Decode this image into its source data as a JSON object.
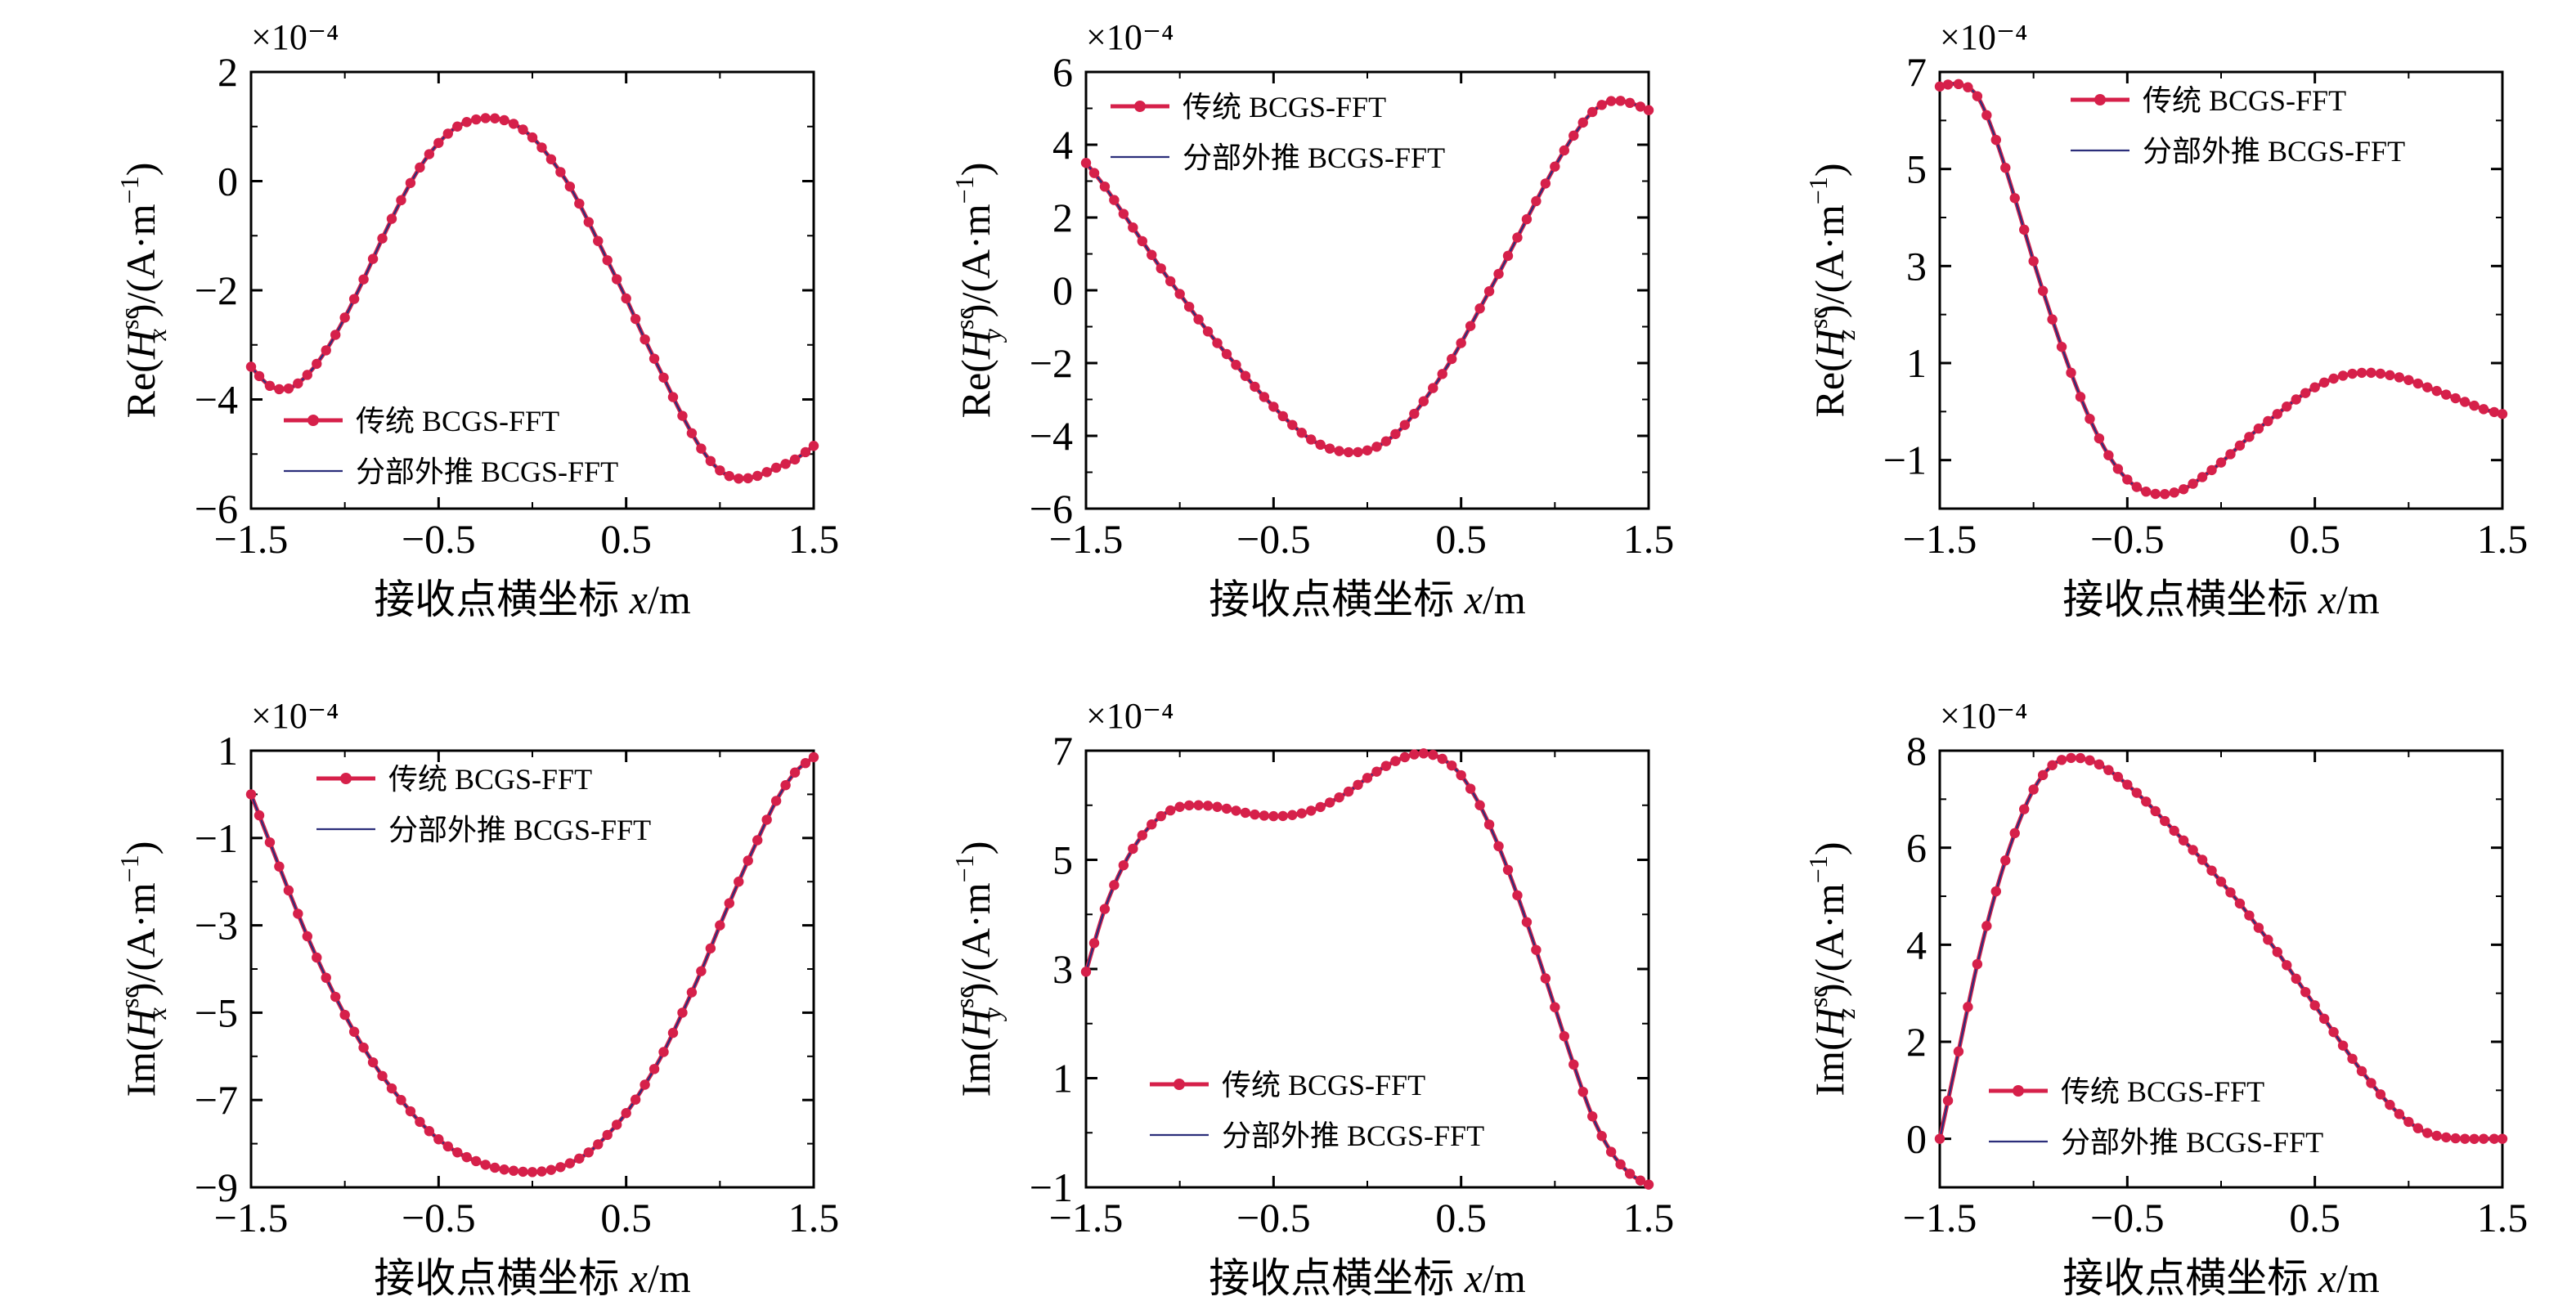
{
  "figure": {
    "x_axis_label": "接收点横坐标 x/m",
    "legend": {
      "series_a": "传统 BCGS-FFT",
      "series_b": "分部外推 BCGS-FFT"
    },
    "exponent_label": "×10⁻⁴",
    "colors": {
      "series_a": "#d6204a",
      "series_b": "#2b2e7a",
      "axis": "#000000"
    }
  },
  "chart_data": [
    {
      "type": "line",
      "ylabel": "Re(Hx^sc)/(A·m⁻¹)",
      "ylabel_parts": {
        "func": "Re",
        "comp": "x"
      },
      "xlabel": "接收点横坐标 x/m",
      "xlim": [
        -1.5,
        1.5
      ],
      "ylim": [
        -6,
        2
      ],
      "xticks": [
        "−1.5",
        "−0.5",
        "0.5",
        "1.5"
      ],
      "yticks": [
        "−6",
        "−4",
        "−2",
        "0",
        "2"
      ],
      "ytick_values": [
        -6,
        -4,
        -2,
        0,
        2
      ],
      "scale": "×10⁻⁴",
      "legend_position": "lower-left",
      "series": [
        {
          "name": "传统 BCGS-FFT",
          "marker": "circle"
        },
        {
          "name": "分部外推 BCGS-FFT",
          "marker": "none"
        }
      ],
      "x": [
        -1.5,
        -1.4,
        -1.3,
        -1.2,
        -1.1,
        -1.0,
        -0.9,
        -0.8,
        -0.7,
        -0.6,
        -0.5,
        -0.4,
        -0.3,
        -0.2,
        -0.1,
        0.0,
        0.1,
        0.2,
        0.3,
        0.4,
        0.5,
        0.6,
        0.7,
        0.8,
        0.9,
        1.0,
        1.1,
        1.2,
        1.3,
        1.4,
        1.5
      ],
      "y": [
        -3.4,
        -3.75,
        -3.8,
        -3.55,
        -3.1,
        -2.5,
        -1.8,
        -1.05,
        -0.35,
        0.25,
        0.7,
        1.0,
        1.13,
        1.15,
        1.05,
        0.8,
        0.4,
        -0.1,
        -0.75,
        -1.45,
        -2.15,
        -2.9,
        -3.6,
        -4.3,
        -4.9,
        -5.3,
        -5.45,
        -5.4,
        -5.25,
        -5.1,
        -4.85
      ]
    },
    {
      "type": "line",
      "ylabel": "Re(Hy^sc)/(A·m⁻¹)",
      "ylabel_parts": {
        "func": "Re",
        "comp": "y"
      },
      "xlabel": "接收点横坐标 x/m",
      "xlim": [
        -1.5,
        1.5
      ],
      "ylim": [
        -6,
        6
      ],
      "xticks": [
        "−1.5",
        "−0.5",
        "0.5",
        "1.5"
      ],
      "yticks": [
        "−6",
        "−4",
        "−2",
        "0",
        "2",
        "4",
        "6"
      ],
      "ytick_values": [
        -6,
        -4,
        -2,
        0,
        2,
        4,
        6
      ],
      "scale": "×10⁻⁴",
      "legend_position": "top-left",
      "series": [
        {
          "name": "传统 BCGS-FFT",
          "marker": "circle"
        },
        {
          "name": "分部外推 BCGS-FFT",
          "marker": "none"
        }
      ],
      "x": [
        -1.5,
        -1.4,
        -1.3,
        -1.2,
        -1.1,
        -1.0,
        -0.9,
        -0.8,
        -0.7,
        -0.6,
        -0.5,
        -0.4,
        -0.3,
        -0.2,
        -0.1,
        0.0,
        0.1,
        0.2,
        0.3,
        0.4,
        0.5,
        0.6,
        0.7,
        0.8,
        0.9,
        1.0,
        1.1,
        1.2,
        1.3,
        1.4,
        1.5
      ],
      "y": [
        3.5,
        2.85,
        2.1,
        1.35,
        0.6,
        -0.1,
        -0.8,
        -1.45,
        -2.05,
        -2.65,
        -3.2,
        -3.7,
        -4.1,
        -4.35,
        -4.45,
        -4.4,
        -4.15,
        -3.7,
        -3.05,
        -2.3,
        -1.45,
        -0.5,
        0.45,
        1.45,
        2.45,
        3.4,
        4.25,
        4.9,
        5.2,
        5.15,
        4.95
      ]
    },
    {
      "type": "line",
      "ylabel": "Re(Hz^sc)/(A·m⁻¹)",
      "ylabel_parts": {
        "func": "Re",
        "comp": "z"
      },
      "xlabel": "接收点横坐标 x/m",
      "xlim": [
        -1.5,
        1.5
      ],
      "ylim": [
        -2,
        7
      ],
      "xticks": [
        "−1.5",
        "−0.5",
        "0.5",
        "1.5"
      ],
      "yticks": [
        "−1",
        "1",
        "3",
        "5",
        "7"
      ],
      "ytick_values": [
        -1,
        1,
        3,
        5,
        7
      ],
      "scale": "×10⁻⁴",
      "legend_position": "top-right",
      "series": [
        {
          "name": "传统 BCGS-FFT",
          "marker": "circle"
        },
        {
          "name": "分部外推 BCGS-FFT",
          "marker": "none"
        }
      ],
      "x": [
        -1.5,
        -1.4,
        -1.3,
        -1.2,
        -1.1,
        -1.0,
        -0.9,
        -0.8,
        -0.7,
        -0.6,
        -0.5,
        -0.4,
        -0.3,
        -0.2,
        -0.1,
        0.0,
        0.1,
        0.2,
        0.3,
        0.4,
        0.5,
        0.6,
        0.7,
        0.8,
        0.9,
        1.0,
        1.1,
        1.2,
        1.3,
        1.4,
        1.5
      ],
      "y": [
        6.7,
        6.75,
        6.5,
        5.6,
        4.4,
        3.1,
        1.9,
        0.8,
        -0.15,
        -0.9,
        -1.4,
        -1.65,
        -1.7,
        -1.6,
        -1.35,
        -1.05,
        -0.7,
        -0.35,
        -0.05,
        0.25,
        0.5,
        0.68,
        0.78,
        0.8,
        0.75,
        0.65,
        0.5,
        0.35,
        0.2,
        0.05,
        -0.05
      ]
    },
    {
      "type": "line",
      "ylabel": "Im(Hx^sc)/(A·m⁻¹)",
      "ylabel_parts": {
        "func": "Im",
        "comp": "x"
      },
      "xlabel": "接收点横坐标 x/m",
      "xlim": [
        -1.5,
        1.5
      ],
      "ylim": [
        -9,
        1
      ],
      "xticks": [
        "−1.5",
        "−0.5",
        "0.5",
        "1.5"
      ],
      "yticks": [
        "−9",
        "−7",
        "−5",
        "−3",
        "−1",
        "1"
      ],
      "ytick_values": [
        -9,
        -7,
        -5,
        -3,
        -1,
        1
      ],
      "scale": "×10⁻⁴",
      "legend_position": "top-left",
      "series": [
        {
          "name": "传统 BCGS-FFT",
          "marker": "circle"
        },
        {
          "name": "分部外推 BCGS-FFT",
          "marker": "none"
        }
      ],
      "x": [
        -1.5,
        -1.4,
        -1.3,
        -1.2,
        -1.1,
        -1.0,
        -0.9,
        -0.8,
        -0.7,
        -0.6,
        -0.5,
        -0.4,
        -0.3,
        -0.2,
        -0.1,
        0.0,
        0.1,
        0.2,
        0.3,
        0.4,
        0.5,
        0.6,
        0.7,
        0.8,
        0.9,
        1.0,
        1.1,
        1.2,
        1.3,
        1.4,
        1.5
      ],
      "y": [
        0.0,
        -1.1,
        -2.2,
        -3.25,
        -4.2,
        -5.05,
        -5.8,
        -6.45,
        -7.0,
        -7.5,
        -7.9,
        -8.2,
        -8.4,
        -8.55,
        -8.62,
        -8.65,
        -8.6,
        -8.45,
        -8.2,
        -7.8,
        -7.3,
        -6.65,
        -5.9,
        -5.0,
        -4.05,
        -3.0,
        -2.0,
        -1.05,
        -0.15,
        0.5,
        0.85
      ]
    },
    {
      "type": "line",
      "ylabel": "Im(Hy^sc)/(A·m⁻¹)",
      "ylabel_parts": {
        "func": "Im",
        "comp": "y"
      },
      "xlabel": "接收点横坐标 x/m",
      "xlim": [
        -1.5,
        1.5
      ],
      "ylim": [
        -1,
        7
      ],
      "xticks": [
        "−1.5",
        "−0.5",
        "0.5",
        "1.5"
      ],
      "yticks": [
        "−1",
        "1",
        "3",
        "5",
        "7"
      ],
      "ytick_values": [
        -1,
        1,
        3,
        5,
        7
      ],
      "scale": "×10⁻⁴",
      "legend_position": "bottom-left",
      "series": [
        {
          "name": "传统 BCGS-FFT",
          "marker": "circle"
        },
        {
          "name": "分部外推 BCGS-FFT",
          "marker": "none"
        }
      ],
      "x": [
        -1.5,
        -1.4,
        -1.3,
        -1.2,
        -1.1,
        -1.0,
        -0.9,
        -0.8,
        -0.7,
        -0.6,
        -0.5,
        -0.4,
        -0.3,
        -0.2,
        -0.1,
        0.0,
        0.1,
        0.2,
        0.3,
        0.4,
        0.5,
        0.6,
        0.7,
        0.8,
        0.9,
        1.0,
        1.1,
        1.2,
        1.3,
        1.4,
        1.5
      ],
      "y": [
        2.95,
        4.1,
        4.9,
        5.45,
        5.8,
        5.97,
        6.0,
        5.97,
        5.9,
        5.83,
        5.8,
        5.82,
        5.9,
        6.05,
        6.25,
        6.5,
        6.72,
        6.88,
        6.95,
        6.85,
        6.55,
        6.0,
        5.25,
        4.35,
        3.35,
        2.3,
        1.25,
        0.3,
        -0.35,
        -0.75,
        -0.95
      ]
    },
    {
      "type": "line",
      "ylabel": "Im(Hz^sc)/(A·m⁻¹)",
      "ylabel_parts": {
        "func": "Im",
        "comp": "z"
      },
      "xlabel": "接收点横坐标 x/m",
      "xlim": [
        -1.5,
        1.5
      ],
      "ylim": [
        -1,
        8
      ],
      "xticks": [
        "−1.5",
        "−0.5",
        "0.5",
        "1.5"
      ],
      "yticks": [
        "0",
        "2",
        "4",
        "6",
        "8"
      ],
      "ytick_values": [
        0,
        2,
        4,
        6,
        8
      ],
      "scale": "×10⁻⁴",
      "legend_position": "bottom-left",
      "series": [
        {
          "name": "传统 BCGS-FFT",
          "marker": "circle"
        },
        {
          "name": "分部外推 BCGS-FFT",
          "marker": "none"
        }
      ],
      "x": [
        -1.5,
        -1.4,
        -1.3,
        -1.2,
        -1.1,
        -1.0,
        -0.9,
        -0.8,
        -0.7,
        -0.6,
        -0.5,
        -0.4,
        -0.3,
        -0.2,
        -0.1,
        0.0,
        0.1,
        0.2,
        0.3,
        0.4,
        0.5,
        0.6,
        0.7,
        0.8,
        0.9,
        1.0,
        1.1,
        1.2,
        1.3,
        1.4,
        1.5
      ],
      "y": [
        0.0,
        1.8,
        3.6,
        5.1,
        6.3,
        7.2,
        7.7,
        7.85,
        7.8,
        7.6,
        7.3,
        6.95,
        6.55,
        6.15,
        5.75,
        5.3,
        4.85,
        4.35,
        3.85,
        3.3,
        2.75,
        2.2,
        1.65,
        1.15,
        0.7,
        0.35,
        0.12,
        0.03,
        0.0,
        0.0,
        0.0
      ]
    }
  ]
}
